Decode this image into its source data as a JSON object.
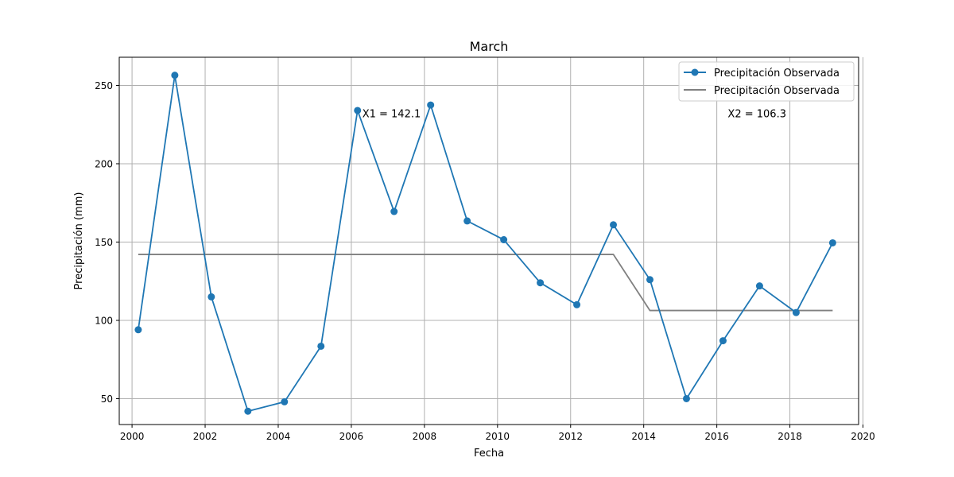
{
  "chart_data": {
    "type": "line",
    "title": "March",
    "xlabel": "Fecha",
    "ylabel": "Precipitación (mm)",
    "xlim": [
      1999.65,
      2019.88
    ],
    "ylim": [
      33.5,
      268.0
    ],
    "xticks": [
      2000,
      2002,
      2004,
      2006,
      2008,
      2010,
      2012,
      2014,
      2016,
      2018,
      2020
    ],
    "yticks": [
      50,
      100,
      150,
      200,
      250
    ],
    "grid": true,
    "legend_position": "top-right",
    "colors": {
      "observed": "#1f77b4",
      "step": "#808080"
    },
    "series": [
      {
        "name": "Precipitación Observada",
        "style": "line-marker",
        "x": [
          2000.17,
          2001.17,
          2002.17,
          2003.17,
          2004.17,
          2005.17,
          2006.17,
          2007.17,
          2008.17,
          2009.17,
          2010.17,
          2011.17,
          2012.17,
          2013.17,
          2014.17,
          2015.17,
          2016.17,
          2017.17,
          2018.17,
          2019.17
        ],
        "values": [
          94,
          256.5,
          115,
          42,
          48,
          83.5,
          234,
          169.5,
          237.5,
          163.5,
          151.5,
          124,
          110,
          161,
          126,
          50,
          87,
          122,
          105,
          149.5
        ]
      },
      {
        "name": "Precipitación Observada",
        "style": "line",
        "x": [
          2000.17,
          2013.17,
          2014.17,
          2019.17
        ],
        "values": [
          142.1,
          142.1,
          106.3,
          106.3
        ]
      }
    ],
    "annotations": [
      {
        "text": "X1 = 142.1",
        "x": 2006.3,
        "y": 232
      },
      {
        "text": "X2 = 106.3",
        "x": 2016.3,
        "y": 232
      }
    ]
  }
}
